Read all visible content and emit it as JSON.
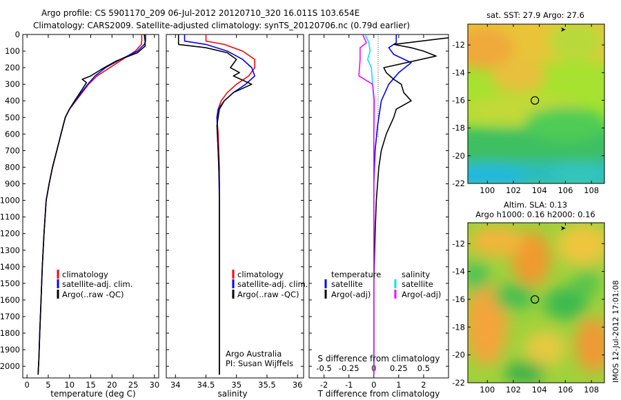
{
  "header": {
    "line1": "Argo profile: CS 5901170_209 06-Jul-2012 20120710_320 16.011S 103.654E",
    "line2": "Climatology: CARS2009. Satellite-adjusted climatology: synTS_20120706.nc (0.79d earlier)"
  },
  "footer_text": "IMOS 12-Jul-2012 17:01:08",
  "credits": {
    "line1": "Argo Australia",
    "line2": "PI: Susan Wijffels"
  },
  "colors": {
    "climatology": "#ff0000",
    "satellite": "#0000ff",
    "argo": "#000000",
    "salinity_satellite": "#00e5ee",
    "salinity_argo": "#ff00ff",
    "marker": "#000000"
  },
  "chart_data": [
    {
      "type": "line",
      "id": "temperature",
      "xlabel": "temperature (deg C)",
      "ylabel": "",
      "xlim": [
        -1,
        31
      ],
      "ylim": [
        2070,
        0
      ],
      "xticks": [
        0,
        5,
        10,
        15,
        20,
        25,
        30
      ],
      "yticks": [
        0,
        100,
        200,
        300,
        400,
        500,
        600,
        700,
        800,
        900,
        1000,
        1100,
        1200,
        1300,
        1400,
        1500,
        1600,
        1700,
        1800,
        1900,
        2000
      ],
      "legend": [
        "climatology",
        "satellite-adj. clim.",
        "Argo(..raw -QC)"
      ],
      "series": [
        {
          "name": "climatology",
          "color": "#ff0000",
          "x": [
            27.0,
            27.0,
            26.9,
            25.5,
            22.5,
            19.5,
            16.5,
            14.5,
            13.0,
            11.5,
            10.0,
            9.0,
            8.0,
            7.0,
            6.0,
            5.2,
            4.5,
            4.0,
            3.6,
            3.3,
            3.0,
            2.8,
            2.6
          ],
          "y": [
            0,
            40,
            60,
            100,
            150,
            200,
            250,
            300,
            350,
            400,
            450,
            500,
            600,
            700,
            800,
            900,
            1000,
            1200,
            1400,
            1600,
            1800,
            1950,
            2050
          ]
        },
        {
          "name": "satellite-adj. clim.",
          "color": "#0000ff",
          "x": [
            27.9,
            27.9,
            27.6,
            26.0,
            22.0,
            18.5,
            16.0,
            14.3,
            12.8,
            11.4,
            10.0,
            9.0,
            8.0,
            7.0,
            6.0,
            5.2,
            4.5,
            4.0,
            3.6,
            3.3,
            3.0,
            2.8,
            2.6
          ],
          "y": [
            0,
            40,
            60,
            100,
            150,
            200,
            250,
            300,
            350,
            400,
            450,
            500,
            600,
            700,
            800,
            900,
            1000,
            1200,
            1400,
            1600,
            1800,
            1950,
            2050
          ]
        },
        {
          "name": "Argo(..raw -QC)",
          "color": "#000000",
          "x": [
            27.6,
            27.8,
            27.8,
            26.0,
            21.0,
            17.5,
            15.0,
            13.0,
            14.0,
            12.5,
            11.2,
            10.0,
            9.0,
            8.0,
            7.0,
            6.0,
            5.2,
            4.5,
            4.0,
            3.6,
            3.3,
            3.0,
            2.8,
            2.6
          ],
          "y": [
            0,
            40,
            70,
            110,
            160,
            210,
            250,
            270,
            290,
            350,
            400,
            450,
            500,
            600,
            700,
            800,
            900,
            1000,
            1200,
            1400,
            1600,
            1800,
            1950,
            2050
          ]
        }
      ]
    },
    {
      "type": "line",
      "id": "salinity",
      "xlabel": "salinity",
      "xlim": [
        33.85,
        36.1
      ],
      "ylim": [
        2070,
        0
      ],
      "xticks": [
        34,
        34.5,
        35,
        35.5,
        36
      ],
      "legend": [
        "climatology",
        "satellite-adj. clim.",
        "Argo(..raw -QC)"
      ],
      "series": [
        {
          "name": "climatology",
          "color": "#ff0000",
          "x": [
            34.5,
            34.5,
            34.8,
            35.1,
            35.3,
            35.3,
            35.2,
            35.0,
            34.85,
            34.75,
            34.7,
            34.68,
            34.7,
            34.72,
            34.72,
            34.72,
            34.72,
            34.72
          ],
          "y": [
            0,
            40,
            60,
            100,
            150,
            200,
            250,
            300,
            350,
            400,
            450,
            500,
            600,
            800,
            1000,
            1300,
            1700,
            2050
          ]
        },
        {
          "name": "satellite-adj. clim.",
          "color": "#0000ff",
          "x": [
            34.15,
            34.15,
            34.5,
            34.85,
            35.1,
            35.25,
            35.3,
            35.15,
            34.95,
            34.8,
            34.7,
            34.68,
            34.69,
            34.71,
            34.72,
            34.72,
            34.72,
            34.72
          ],
          "y": [
            0,
            40,
            60,
            100,
            150,
            200,
            250,
            300,
            350,
            400,
            450,
            500,
            600,
            800,
            1000,
            1300,
            1700,
            2050
          ]
        },
        {
          "name": "Argo(..raw -QC)",
          "color": "#000000",
          "x": [
            34.05,
            34.05,
            34.5,
            34.85,
            35.0,
            34.9,
            35.05,
            34.95,
            35.25,
            34.95,
            34.8,
            34.72,
            34.68,
            34.7,
            34.72,
            34.72,
            34.72,
            34.72
          ],
          "y": [
            0,
            60,
            80,
            110,
            150,
            200,
            230,
            250,
            300,
            350,
            400,
            450,
            550,
            700,
            900,
            1200,
            1700,
            2050
          ]
        }
      ]
    },
    {
      "type": "line",
      "id": "difference",
      "xlabel": "T difference from climatology",
      "x2label": "S difference from climatology",
      "xlim": [
        -2.6,
        3.0
      ],
      "x2lim": [
        -0.65,
        0.75
      ],
      "ylim": [
        2070,
        0
      ],
      "xticks": [
        -2,
        -1,
        0,
        1,
        2
      ],
      "x2ticks": [
        -0.5,
        -0.25,
        0,
        0.25,
        0.5
      ],
      "legend_temperature": [
        "temperature",
        "satellite",
        "Argo(-adj)"
      ],
      "legend_salinity": [
        "salinity",
        "satellite",
        "Argo(-adj)"
      ],
      "series": [
        {
          "name": "temperature satellite",
          "color": "#0000ff",
          "x": [
            0.9,
            0.9,
            0.6,
            0.8,
            1.5,
            1.0,
            0.6,
            0.3,
            0.15,
            0.05,
            0.0,
            0.0,
            0.0,
            0.0
          ],
          "y": [
            0,
            50,
            80,
            120,
            170,
            230,
            300,
            400,
            550,
            700,
            900,
            1200,
            1600,
            2050
          ]
        },
        {
          "name": "temperature Argo(-adj)",
          "color": "#000000",
          "x": [
            3.0,
            0.8,
            1.5,
            2.0,
            2.5,
            0.4,
            0.5,
            0.8,
            1.1,
            1.2,
            1.5,
            0.9,
            0.8,
            0.5,
            0.3,
            0.2,
            0.15,
            0.1,
            0.05,
            0.0,
            0.0,
            0.0
          ],
          "y": [
            20,
            60,
            80,
            100,
            130,
            200,
            230,
            270,
            300,
            350,
            400,
            450,
            500,
            600,
            700,
            800,
            900,
            1000,
            1200,
            1500,
            1800,
            2050
          ]
        },
        {
          "name": "salinity satellite",
          "color": "#00e5ee",
          "x": [
            -0.35,
            -0.2,
            -0.15,
            -0.25,
            -0.1,
            -0.05,
            0.0,
            0.0,
            0.0,
            0.0,
            0.0
          ],
          "y": [
            0,
            50,
            100,
            150,
            200,
            300,
            400,
            600,
            1000,
            1500,
            2050
          ]
        },
        {
          "name": "salinity Argo(-adj)",
          "color": "#ff00ff",
          "x": [
            -0.45,
            -0.3,
            -0.55,
            -0.55,
            -0.6,
            -0.05,
            0.02,
            0.0,
            0.0,
            0.0,
            0.0
          ],
          "y": [
            0,
            50,
            80,
            150,
            250,
            300,
            400,
            600,
            1000,
            1500,
            2050
          ]
        }
      ]
    },
    {
      "type": "heatmap",
      "id": "sst-map",
      "title": "sat. SST: 27.9 Argo: 27.6",
      "xlim": [
        98.5,
        109
      ],
      "ylim": [
        -22,
        -10.5
      ],
      "xticks": [
        100,
        102,
        104,
        106,
        108
      ],
      "yticks": [
        -12,
        -14,
        -16,
        -18,
        -20,
        -22
      ],
      "marker": {
        "lon": 103.654,
        "lat": -16.011
      },
      "arrow": {
        "lon": 105.6,
        "lat": -10.9
      }
    },
    {
      "type": "heatmap",
      "id": "sla-map",
      "title": "Altim. SLA: 0.13",
      "subtitle": "Argo h1000: 0.16 h2000: 0.16",
      "xlim": [
        98.5,
        109
      ],
      "ylim": [
        -22,
        -10.5
      ],
      "xticks": [
        100,
        102,
        104,
        106,
        108
      ],
      "yticks": [
        -12,
        -14,
        -16,
        -18,
        -20,
        -22
      ],
      "marker": {
        "lon": 103.654,
        "lat": -16.011
      },
      "arrow": {
        "lon": 105.6,
        "lat": -10.9
      }
    }
  ]
}
